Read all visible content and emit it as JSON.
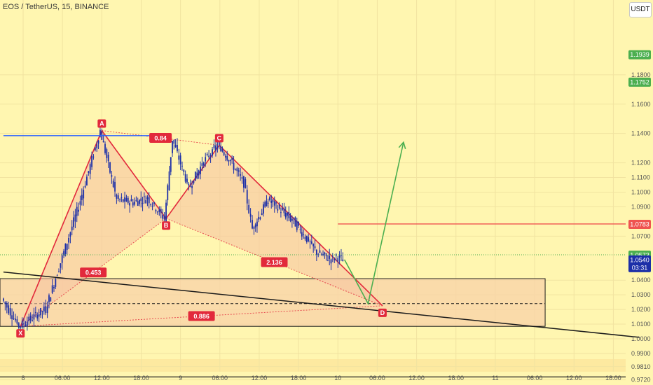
{
  "header": {
    "title": "EOS / TetherUS, 15, BINANCE",
    "currency_button": "USDT"
  },
  "colors": {
    "background": "#fff6b0",
    "candle": "#1c2fa8",
    "pattern_line": "#e2293b",
    "pattern_fill": "#f7c4a2",
    "zone_fill": "#f8d2a8",
    "projection": "#4caf50",
    "trendline": "#1a1a1a",
    "h_line_red": "#ef5350",
    "h_line_blue": "#2962ff",
    "last_price_tag": "#4caf50"
  },
  "chart_data": {
    "type": "line",
    "title": "EOS / TetherUS, 15, BINANCE",
    "xlabel": "",
    "ylabel": "",
    "ylim": [
      0.9685,
      1.2205
    ],
    "x_ticks": [
      "8",
      "06:00",
      "12:00",
      "18:00",
      "9",
      "06:00",
      "12:00",
      "18:00",
      "10",
      "06:00",
      "12:00",
      "18:00",
      "11",
      "06:00",
      "12:00",
      "18:00"
    ],
    "x_tick_hours": [
      0,
      6,
      12,
      18,
      24,
      30,
      36,
      42,
      48,
      54,
      60,
      66,
      72,
      78,
      84,
      90
    ],
    "y_ticks": [
      "1.1800",
      "1.1600",
      "1.1400",
      "1.1200",
      "1.1100",
      "1.1000",
      "1.0900",
      "1.0700",
      "1.0400",
      "1.0300",
      "1.0200",
      "1.0100",
      "1.0000",
      "0.9900",
      "0.9810",
      "0.9720"
    ],
    "y_tick_values": [
      1.18,
      1.16,
      1.14,
      1.12,
      1.11,
      1.1,
      1.09,
      1.07,
      1.04,
      1.03,
      1.02,
      1.01,
      1.0,
      0.99,
      0.981,
      0.972
    ],
    "price_tags": [
      {
        "label": "1.1939",
        "value": 1.1939,
        "color": "#4caf50",
        "cut": true
      },
      {
        "label": "1.1752",
        "value": 1.1752,
        "color": "#4caf50"
      },
      {
        "label": "1.0783",
        "value": 1.0783,
        "color": "#ef5350"
      },
      {
        "label": "1.0573",
        "value": 1.0573,
        "color": "#4caf50"
      },
      {
        "label": "1.0540",
        "sub": "03:31",
        "value": 1.054,
        "color": "#1c2fa8"
      }
    ],
    "series": [
      {
        "type": "candlestick",
        "x_hours": [
          -3,
          -0.4,
          3.7,
          8.7,
          12,
          14.5,
          17,
          19.2,
          21.8,
          23,
          25.5,
          27.8,
          29.9,
          31.6,
          33.9,
          35.2,
          37.6,
          41.5,
          45,
          47.2,
          48,
          49
        ],
        "close": [
          1.0275,
          1.0085,
          1.0205,
          1.0905,
          1.142,
          1.095,
          1.093,
          1.096,
          1.082,
          1.136,
          1.103,
          1.121,
          1.132,
          1.123,
          1.106,
          1.075,
          1.095,
          1.08,
          1.059,
          1.054,
          1.056,
          1.054
        ]
      },
      {
        "name": "",
        "type": "harmonic-xabcd",
        "points": [
          {
            "label": "X",
            "x_hour": -0.4,
            "y": 1.0085
          },
          {
            "label": "A",
            "x_hour": 12,
            "y": 1.142
          },
          {
            "label": "B",
            "x_hour": 21.8,
            "y": 1.082
          },
          {
            "label": "C",
            "x_hour": 29.9,
            "y": 1.132
          },
          {
            "label": "D",
            "x_hour": 54.8,
            "y": 1.0225
          }
        ],
        "ratios": [
          {
            "label": "0.453",
            "value": 0.453
          },
          {
            "label": "0.84",
            "value": 0.84
          },
          {
            "label": "2.136",
            "value": 2.136
          },
          {
            "label": "0.886",
            "value": 0.886
          }
        ]
      },
      {
        "name": "",
        "type": "projection",
        "points": [
          {
            "x_hour": 49,
            "y": 1.054
          },
          {
            "x_hour": 52.6,
            "y": 1.024
          },
          {
            "x_hour": 58,
            "y": 1.134
          }
        ]
      }
    ],
    "zones": [
      {
        "type": "rectangle",
        "y_top": 1.041,
        "y_bottom": 1.0085,
        "x_end_hour": 79.6
      },
      {
        "type": "hline",
        "y": 1.024,
        "style": "dashed",
        "x_end_hour": 79.6
      }
    ],
    "lines": [
      {
        "type": "trendline",
        "points": [
          {
            "x_hour": -3,
            "y": 1.0455
          },
          {
            "x_hour": 94,
            "y": 1.001
          }
        ]
      },
      {
        "type": "hline",
        "y": 1.1385,
        "color": "#2962ff",
        "x_start_hour": -3,
        "x_end_hour": 22.4
      },
      {
        "type": "hline",
        "y": 1.0783,
        "color": "#ef5350",
        "x_start_hour": 48,
        "x_end_hour": 94
      },
      {
        "type": "hline",
        "y": 1.0573,
        "color": "#4caf50",
        "style": "dotted"
      },
      {
        "type": "hline",
        "y": 0.974,
        "color": "#1a1a1a"
      }
    ]
  }
}
